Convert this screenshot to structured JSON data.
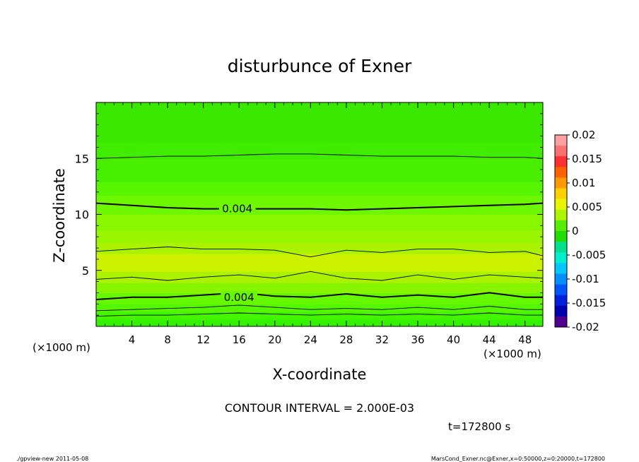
{
  "chart_data": {
    "type": "heatmap",
    "subtype": "filled-contour",
    "title": "disturbunce of Exner",
    "xlabel": "X-coordinate",
    "ylabel": "Z-coordinate",
    "x_unit_left": "(×1000 m)",
    "x_unit_right": "(×1000 m)",
    "xlim": [
      0,
      50
    ],
    "ylim": [
      0,
      20
    ],
    "xticks": [
      4,
      8,
      12,
      16,
      20,
      24,
      28,
      32,
      36,
      40,
      44,
      48
    ],
    "xtick_labels": [
      "4",
      "8",
      "12",
      "16",
      "20",
      "24",
      "28",
      "32",
      "36",
      "40",
      "44",
      "48"
    ],
    "yticks": [
      5,
      10,
      15
    ],
    "ytick_labels": [
      "5",
      "10",
      "15"
    ],
    "contour_interval_text": "CONTOUR INTERVAL = 2.000E-03",
    "time_text": "t=172800 s",
    "contour_labels": [
      {
        "text": "0.004",
        "x": 15.8,
        "z": 10.5
      },
      {
        "text": "0.004",
        "x": 16.0,
        "z": 2.6
      }
    ],
    "contour_lines": [
      {
        "level": 0.002,
        "bold": false,
        "x": [
          0,
          4,
          8,
          12,
          16,
          20,
          24,
          28,
          32,
          36,
          40,
          44,
          48,
          50
        ],
        "z": [
          0.9,
          1.0,
          1.0,
          1.1,
          1.2,
          1.1,
          1.0,
          1.1,
          1.0,
          1.1,
          1.0,
          1.2,
          1.0,
          1.0
        ]
      },
      {
        "level": 0.002,
        "bold": false,
        "x": [
          0,
          4,
          8,
          12,
          16,
          20,
          24,
          28,
          32,
          36,
          40,
          44,
          48,
          50
        ],
        "z": [
          1.4,
          1.5,
          1.6,
          1.7,
          1.9,
          1.7,
          1.5,
          1.6,
          1.5,
          1.7,
          1.5,
          1.8,
          1.5,
          1.5
        ]
      },
      {
        "level": 0.004,
        "bold": true,
        "x": [
          0,
          4,
          8,
          12,
          16,
          20,
          24,
          28,
          32,
          36,
          40,
          44,
          48,
          50
        ],
        "z": [
          2.4,
          2.6,
          2.6,
          2.8,
          3.0,
          2.7,
          2.6,
          2.9,
          2.6,
          2.8,
          2.6,
          3.0,
          2.6,
          2.6
        ]
      },
      {
        "level": 0.006,
        "bold": false,
        "x": [
          0,
          4,
          8,
          12,
          16,
          20,
          24,
          28,
          32,
          36,
          40,
          44,
          48,
          50
        ],
        "z": [
          4.2,
          4.4,
          4.1,
          4.4,
          4.6,
          4.3,
          4.9,
          4.3,
          4.1,
          4.6,
          4.2,
          4.6,
          4.4,
          4.3
        ]
      },
      {
        "level": 0.006,
        "bold": false,
        "x": [
          0,
          4,
          8,
          12,
          16,
          20,
          24,
          28,
          32,
          36,
          40,
          44,
          48,
          50
        ],
        "z": [
          6.7,
          6.9,
          7.1,
          6.9,
          6.9,
          6.8,
          6.2,
          6.8,
          6.6,
          6.9,
          6.9,
          6.6,
          6.7,
          6.3
        ]
      },
      {
        "level": 0.004,
        "bold": true,
        "x": [
          0,
          4,
          8,
          12,
          16,
          20,
          24,
          28,
          32,
          36,
          40,
          44,
          48,
          50
        ],
        "z": [
          11.0,
          10.8,
          10.6,
          10.5,
          10.5,
          10.5,
          10.5,
          10.4,
          10.5,
          10.6,
          10.7,
          10.8,
          10.9,
          11.0
        ]
      },
      {
        "level": 0.002,
        "bold": false,
        "x": [
          0,
          4,
          8,
          12,
          16,
          20,
          24,
          28,
          32,
          36,
          40,
          44,
          48,
          50
        ],
        "z": [
          15.0,
          15.1,
          15.2,
          15.2,
          15.3,
          15.4,
          15.4,
          15.3,
          15.2,
          15.2,
          15.2,
          15.1,
          15.1,
          15.0
        ]
      }
    ],
    "bands": [
      {
        "z0": 0.0,
        "z1": 0.6,
        "color": "#33f200"
      },
      {
        "z0": 0.6,
        "z1": 1.3,
        "color": "#44f500"
      },
      {
        "z0": 1.3,
        "z1": 2.0,
        "color": "#55f700"
      },
      {
        "z0": 2.0,
        "z1": 3.0,
        "color": "#66f800"
      },
      {
        "z0": 3.0,
        "z1": 3.9,
        "color": "#88f500"
      },
      {
        "z0": 3.9,
        "z1": 4.9,
        "color": "#aaf200"
      },
      {
        "z0": 4.9,
        "z1": 6.5,
        "color": "#ccf200"
      },
      {
        "z0": 6.5,
        "z1": 7.5,
        "color": "#aaf200"
      },
      {
        "z0": 7.5,
        "z1": 8.6,
        "color": "#99f500"
      },
      {
        "z0": 8.6,
        "z1": 10.0,
        "color": "#88f700"
      },
      {
        "z0": 10.0,
        "z1": 11.7,
        "color": "#6df700"
      },
      {
        "z0": 11.7,
        "z1": 12.9,
        "color": "#58f500"
      },
      {
        "z0": 12.9,
        "z1": 15.0,
        "color": "#48ef00"
      },
      {
        "z0": 15.0,
        "z1": 16.4,
        "color": "#40ec00"
      },
      {
        "z0": 16.4,
        "z1": 20.0,
        "color": "#3ae800"
      }
    ],
    "colorbar": {
      "range": [
        -0.02,
        0.02
      ],
      "tick_labels": [
        "0.02",
        "0.015",
        "0.01",
        "0.005",
        "0",
        "-0.005",
        "-0.01",
        "-0.015",
        "-0.02"
      ],
      "tick_values": [
        0.02,
        0.015,
        0.01,
        0.005,
        0,
        -0.005,
        -0.01,
        -0.015,
        -0.02
      ],
      "colors": [
        "#ffa0a0",
        "#ff7070",
        "#ff3030",
        "#ff6000",
        "#ff9900",
        "#ffd000",
        "#e8f500",
        "#b0f500",
        "#55ee00",
        "#22dd00",
        "#00e08a",
        "#00eed0",
        "#00c8ff",
        "#0090ff",
        "#0055ff",
        "#0020e0",
        "#0000b0",
        "#500090"
      ]
    }
  },
  "footer": {
    "left": "./gpview-new   2011-05-08",
    "right": "MarsCond_Exner.nc@Exner,x=0:50000,z=0:20000,t=172800"
  }
}
